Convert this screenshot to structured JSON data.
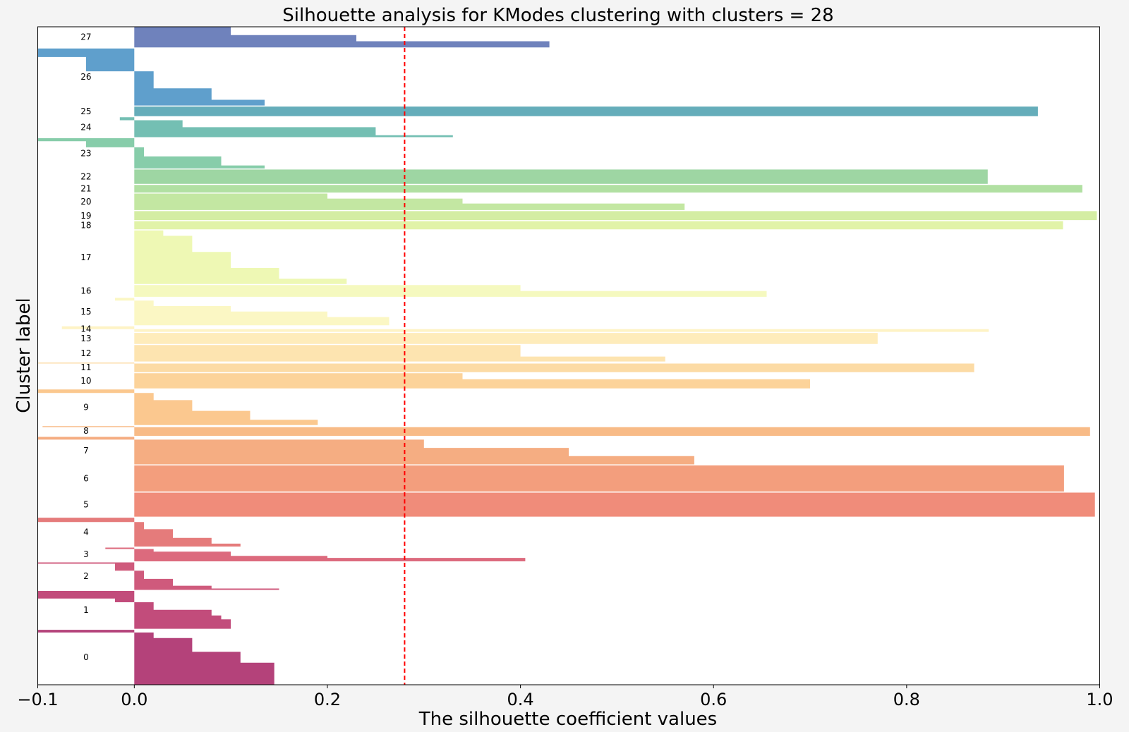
{
  "chart_data": {
    "type": "bar",
    "orientation": "horizontal",
    "title": "Silhouette analysis for KModes clustering with clusters = 28",
    "xlabel": "The silhouette coefficient values",
    "ylabel": "Cluster label",
    "xlim": [
      -0.1,
      1.0
    ],
    "xticks": [
      -0.1,
      0.0,
      0.2,
      0.4,
      0.6,
      0.8,
      1.0
    ],
    "xtick_labels": [
      "−0.1",
      "0.0",
      "0.2",
      "0.4",
      "0.6",
      "0.8",
      "1.0"
    ],
    "average_silhouette": 0.28,
    "average_line_color": "#ff0000",
    "colormap": "Spectral",
    "grid": false,
    "legend": "none",
    "clusters": [
      {
        "label": "0",
        "size": 80,
        "color": "#b4427a",
        "segments": [
          [
            0.4,
            0.145
          ],
          [
            0.6,
            0.11
          ],
          [
            0.85,
            0.06
          ],
          [
            0.95,
            0.02
          ],
          [
            1.0,
            -0.1
          ]
        ]
      },
      {
        "label": "1",
        "size": 55,
        "color": "#c24c7b",
        "segments": [
          [
            0.25,
            0.1
          ],
          [
            0.35,
            0.09
          ],
          [
            0.5,
            0.08
          ],
          [
            0.7,
            0.02
          ],
          [
            0.8,
            -0.02
          ],
          [
            1.0,
            -0.1
          ]
        ]
      },
      {
        "label": "2",
        "size": 40,
        "color": "#cf5a7c",
        "segments": [
          [
            0.05,
            0.15
          ],
          [
            0.15,
            0.08
          ],
          [
            0.4,
            0.04
          ],
          [
            0.7,
            0.01
          ],
          [
            0.95,
            -0.02
          ],
          [
            1.0,
            -0.1
          ]
        ]
      },
      {
        "label": "3",
        "size": 20,
        "color": "#dc6a7d",
        "segments": [
          [
            0.25,
            0.405
          ],
          [
            0.4,
            0.2
          ],
          [
            0.7,
            0.1
          ],
          [
            0.9,
            0.02
          ],
          [
            1.0,
            -0.03
          ]
        ]
      },
      {
        "label": "4",
        "size": 42,
        "color": "#e57b7b",
        "segments": [
          [
            0.1,
            0.11
          ],
          [
            0.3,
            0.08
          ],
          [
            0.6,
            0.04
          ],
          [
            0.85,
            0.01
          ],
          [
            1.0,
            -0.1
          ]
        ]
      },
      {
        "label": "5",
        "size": 35,
        "color": "#f08c7a",
        "segments": [
          [
            1.0,
            0.995
          ]
        ]
      },
      {
        "label": "6",
        "size": 38,
        "color": "#f39e7d",
        "segments": [
          [
            1.0,
            0.963
          ]
        ]
      },
      {
        "label": "7",
        "size": 40,
        "color": "#f5ad82",
        "segments": [
          [
            0.3,
            0.58
          ],
          [
            0.6,
            0.45
          ],
          [
            0.9,
            0.3
          ],
          [
            1.0,
            -0.1
          ]
        ]
      },
      {
        "label": "8",
        "size": 14,
        "color": "#f8bb87",
        "segments": [
          [
            0.9,
            0.99
          ],
          [
            1.0,
            -0.095
          ]
        ]
      },
      {
        "label": "9",
        "size": 52,
        "color": "#fbc88f",
        "segments": [
          [
            0.15,
            0.19
          ],
          [
            0.4,
            0.12
          ],
          [
            0.7,
            0.06
          ],
          [
            0.9,
            0.02
          ],
          [
            1.0,
            -0.1
          ]
        ]
      },
      {
        "label": "10",
        "size": 22,
        "color": "#fcd39a",
        "segments": [
          [
            0.6,
            0.7
          ],
          [
            1.0,
            0.34
          ]
        ]
      },
      {
        "label": "11",
        "size": 14,
        "color": "#fcdba5",
        "segments": [
          [
            0.9,
            0.87
          ],
          [
            1.0,
            -0.1
          ]
        ]
      },
      {
        "label": "12",
        "size": 24,
        "color": "#fde4b0",
        "segments": [
          [
            0.3,
            0.55
          ],
          [
            1.0,
            0.4
          ]
        ]
      },
      {
        "label": "13",
        "size": 16,
        "color": "#feecbb",
        "segments": [
          [
            1.0,
            0.77
          ]
        ]
      },
      {
        "label": "14",
        "size": 8,
        "color": "#fef3c5",
        "segments": [
          [
            0.5,
            0.885
          ],
          [
            1.0,
            -0.075
          ]
        ]
      },
      {
        "label": "15",
        "size": 40,
        "color": "#fbf7c4",
        "segments": [
          [
            0.3,
            0.264
          ],
          [
            0.5,
            0.2
          ],
          [
            0.7,
            0.1
          ],
          [
            0.9,
            0.02
          ],
          [
            1.0,
            -0.02
          ]
        ]
      },
      {
        "label": "16",
        "size": 17,
        "color": "#f5f9bf",
        "segments": [
          [
            0.5,
            0.655
          ],
          [
            1.0,
            0.4
          ]
        ]
      },
      {
        "label": "17",
        "size": 78,
        "color": "#eef8b4",
        "segments": [
          [
            0.1,
            0.22
          ],
          [
            0.3,
            0.15
          ],
          [
            0.6,
            0.1
          ],
          [
            0.9,
            0.06
          ],
          [
            1.0,
            0.03
          ]
        ]
      },
      {
        "label": "18",
        "size": 12,
        "color": "#e1f3a8",
        "segments": [
          [
            1.0,
            0.962
          ]
        ]
      },
      {
        "label": "19",
        "size": 13,
        "color": "#d4eda3",
        "segments": [
          [
            1.0,
            0.997
          ]
        ]
      },
      {
        "label": "20",
        "size": 24,
        "color": "#c3e7a2",
        "segments": [
          [
            0.4,
            0.57
          ],
          [
            0.7,
            0.34
          ],
          [
            1.0,
            0.2
          ]
        ]
      },
      {
        "label": "21",
        "size": 11,
        "color": "#b1e0a2",
        "segments": [
          [
            1.0,
            0.982
          ]
        ]
      },
      {
        "label": "22",
        "size": 21,
        "color": "#9ed6a3",
        "segments": [
          [
            1.0,
            0.884
          ]
        ]
      },
      {
        "label": "23",
        "size": 44,
        "color": "#87cdaa",
        "segments": [
          [
            0.1,
            0.135
          ],
          [
            0.4,
            0.09
          ],
          [
            0.7,
            0.01
          ],
          [
            0.9,
            -0.05
          ],
          [
            1.0,
            -0.1
          ]
        ]
      },
      {
        "label": "24",
        "size": 29,
        "color": "#74bfb3",
        "segments": [
          [
            0.1,
            0.33
          ],
          [
            0.5,
            0.25
          ],
          [
            0.85,
            0.05
          ],
          [
            1.0,
            -0.015
          ]
        ]
      },
      {
        "label": "25",
        "size": 14,
        "color": "#65adba",
        "segments": [
          [
            1.0,
            0.936
          ]
        ]
      },
      {
        "label": "26",
        "size": 83,
        "color": "#5f9fcc",
        "segments": [
          [
            0.1,
            0.135
          ],
          [
            0.3,
            0.08
          ],
          [
            0.6,
            0.02
          ],
          [
            0.85,
            -0.05
          ],
          [
            1.0,
            -0.1
          ]
        ]
      },
      {
        "label": "27",
        "size": 30,
        "color": "#6f82bc",
        "segments": [
          [
            0.3,
            0.43
          ],
          [
            0.6,
            0.23
          ],
          [
            1.0,
            0.1
          ]
        ]
      }
    ]
  }
}
